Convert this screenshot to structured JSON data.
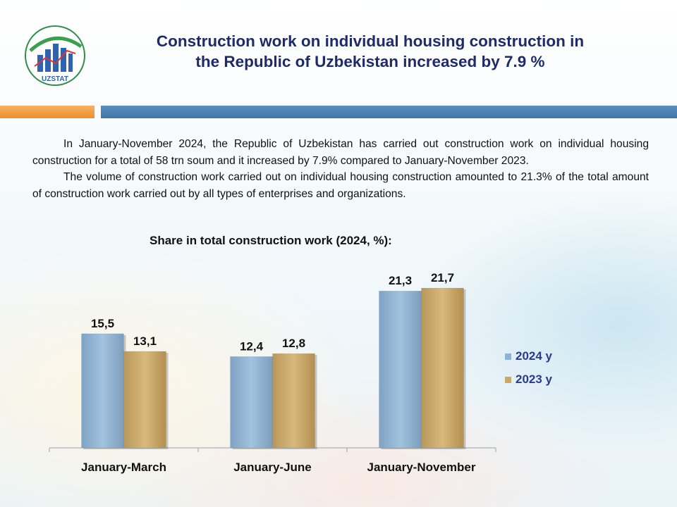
{
  "logo": {
    "text": "UZSTAT"
  },
  "title": {
    "line1": "Construction work on individual housing construction in",
    "line2": "the Republic of Uzbekistan increased by 7.9 %"
  },
  "paragraphs": [
    "In January-November 2024, the Republic of Uzbekistan has carried out construction work on individual housing construction for a total of 58 trn soum and it increased by 7.9% compared to January-November 2023.",
    "The volume of construction work carried out on individual housing construction amounted to 21.3% of the total amount of construction work carried out by all types of enterprises and organizations."
  ],
  "colors": {
    "series_2024": "#8fb3d2",
    "series_2023": "#c9a96a",
    "title": "#1f2a6b",
    "legend_text": "#2a3a8c",
    "accent_orange": "#ee8f2c",
    "accent_blue": "#3f76a8"
  },
  "chart_data": {
    "type": "bar",
    "title": "Share in total construction work (2024, %):",
    "categories": [
      "January-March",
      "January-June",
      "January-November"
    ],
    "series": [
      {
        "name": "2024 y",
        "values": [
          15.5,
          12.4,
          21.3
        ],
        "labels": [
          "15,5",
          "12,4",
          "21,3"
        ]
      },
      {
        "name": "2023 y",
        "values": [
          13.1,
          12.8,
          21.7
        ],
        "labels": [
          "13,1",
          "12,8",
          "21,7"
        ]
      }
    ],
    "ylim": [
      0,
      24
    ],
    "grid": false,
    "legend_position": "right"
  }
}
